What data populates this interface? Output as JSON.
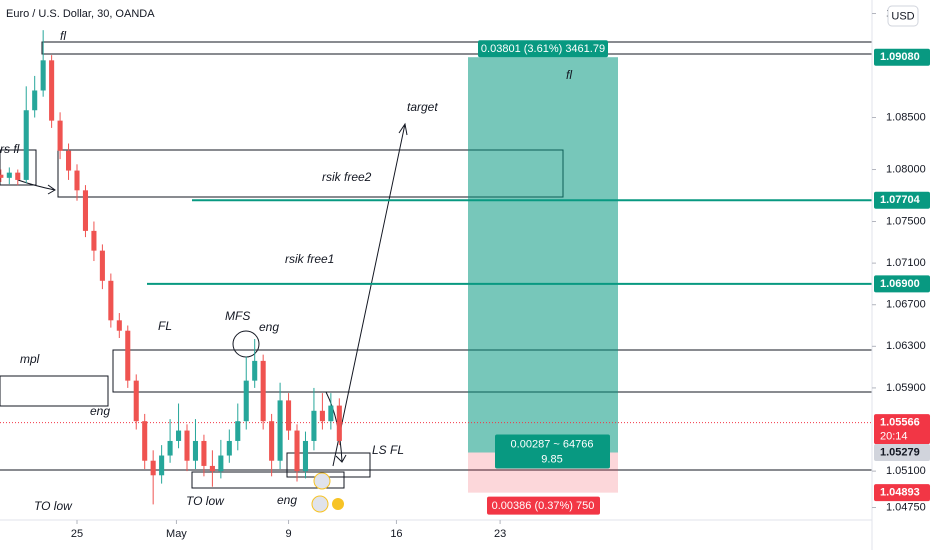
{
  "chart_data": {
    "type": "candlestick",
    "title": "Euro / U.S. Dollar, 30, OANDA",
    "currency": "USD",
    "up_color": "#26a69a",
    "down_color": "#ef5350",
    "xlim": [
      -3.64,
      37.58
    ],
    "ylim": [
      1.0463,
      1.0963
    ],
    "xticks": [
      {
        "value": 0,
        "label": "25"
      },
      {
        "value": 4.7,
        "label": "May"
      },
      {
        "value": 10,
        "label": "9"
      },
      {
        "value": 15.1,
        "label": "16"
      },
      {
        "value": 20,
        "label": "23"
      }
    ],
    "yticks": [
      {
        "value": 1.095,
        "label": "1."
      },
      {
        "value": 1.085,
        "label": "1.08500"
      },
      {
        "value": 1.08,
        "label": "1.08000"
      },
      {
        "value": 1.075,
        "label": "1.07500"
      },
      {
        "value": 1.071,
        "label": "1.07100"
      },
      {
        "value": 1.067,
        "label": "1.06700"
      },
      {
        "value": 1.063,
        "label": "1.06300"
      },
      {
        "value": 1.059,
        "label": "1.05900"
      },
      {
        "value": 1.051,
        "label": "1.05100"
      },
      {
        "value": 1.0475,
        "label": "1.04750"
      }
    ],
    "candles": [
      [
        -3.6,
        1.0795,
        1.08,
        1.0788,
        1.0792
      ],
      [
        -3.2,
        1.0792,
        1.0802,
        1.0786,
        1.0797
      ],
      [
        -2.8,
        1.0797,
        1.08,
        1.0785,
        1.079
      ],
      [
        -2.4,
        1.079,
        1.088,
        1.0787,
        1.0857
      ],
      [
        -2.0,
        1.0857,
        1.089,
        1.085,
        1.0876
      ],
      [
        -1.6,
        1.0876,
        1.0934,
        1.087,
        1.0905
      ],
      [
        -1.2,
        1.0905,
        1.091,
        1.084,
        1.0847
      ],
      [
        -0.8,
        1.0847,
        1.0855,
        1.081,
        1.0818
      ],
      [
        -0.4,
        1.0818,
        1.0825,
        1.079,
        1.0799
      ],
      [
        0.0,
        1.0799,
        1.0805,
        1.077,
        1.078
      ],
      [
        0.4,
        1.078,
        1.0785,
        1.0735,
        1.0741
      ],
      [
        0.8,
        1.0741,
        1.075,
        1.0712,
        1.0722
      ],
      [
        1.2,
        1.0722,
        1.0728,
        1.0685,
        1.0693
      ],
      [
        1.6,
        1.0693,
        1.07,
        1.0648,
        1.0655
      ],
      [
        2.0,
        1.0655,
        1.0662,
        1.0638,
        1.0645
      ],
      [
        2.4,
        1.0645,
        1.065,
        1.059,
        1.0597
      ],
      [
        2.8,
        1.0597,
        1.0603,
        1.055,
        1.0558
      ],
      [
        3.2,
        1.0558,
        1.0565,
        1.0512,
        1.052
      ],
      [
        3.6,
        1.052,
        1.053,
        1.0478,
        1.0506
      ],
      [
        4.0,
        1.0506,
        1.0535,
        1.0498,
        1.0525
      ],
      [
        4.4,
        1.0525,
        1.056,
        1.0518,
        1.0539
      ],
      [
        4.8,
        1.0539,
        1.0575,
        1.0532,
        1.0549
      ],
      [
        5.2,
        1.0549,
        1.0555,
        1.051,
        1.052
      ],
      [
        5.6,
        1.052,
        1.056,
        1.0512,
        1.0539
      ],
      [
        6.0,
        1.0539,
        1.0545,
        1.0505,
        1.0515
      ],
      [
        6.4,
        1.0515,
        1.053,
        1.0495,
        1.051
      ],
      [
        6.8,
        1.051,
        1.054,
        1.0503,
        1.0525
      ],
      [
        7.2,
        1.0525,
        1.055,
        1.0518,
        1.0539
      ],
      [
        7.6,
        1.0539,
        1.0575,
        1.053,
        1.0558
      ],
      [
        8.0,
        1.0558,
        1.062,
        1.055,
        1.0597
      ],
      [
        8.4,
        1.0597,
        1.0637,
        1.059,
        1.0616
      ],
      [
        8.8,
        1.0616,
        1.0622,
        1.055,
        1.0558
      ],
      [
        9.2,
        1.0558,
        1.0565,
        1.0505,
        1.052
      ],
      [
        9.6,
        1.052,
        1.0595,
        1.0512,
        1.0578
      ],
      [
        10.0,
        1.0578,
        1.0585,
        1.054,
        1.0549
      ],
      [
        10.4,
        1.0549,
        1.0555,
        1.05,
        1.051
      ],
      [
        10.8,
        1.051,
        1.0548,
        1.0503,
        1.0539
      ],
      [
        11.2,
        1.0539,
        1.059,
        1.053,
        1.0568
      ],
      [
        11.6,
        1.0568,
        1.0585,
        1.055,
        1.0558
      ],
      [
        12.0,
        1.0558,
        1.0585,
        1.055,
        1.0573
      ],
      [
        12.4,
        1.0573,
        1.058,
        1.0535,
        1.0539
      ]
    ],
    "price_labels": [
      {
        "value": 1.0908,
        "label": "1.09080",
        "color": "#089981"
      },
      {
        "value": 1.07704,
        "label": "1.07704",
        "color": "#089981"
      },
      {
        "value": 1.069,
        "label": "1.06900",
        "color": "#089981"
      },
      {
        "value": 1.05566,
        "label": "1.05566",
        "color": "#f23645",
        "countdown": "20:14"
      },
      {
        "value": 1.05279,
        "label": "1.05279",
        "color": "#d1d4dc"
      },
      {
        "value": 1.04893,
        "label": "1.04893",
        "color": "#f23645"
      }
    ],
    "position": {
      "target_label": "0.03801 (3.61%) 3461.79",
      "center_label": "0.00287 ~ 64766",
      "center_sublabel": "9.85",
      "stop_label": "0.00386 (0.37%) 750"
    },
    "annotations": [
      "fl",
      "rs fl",
      "rsik free2",
      "rsik free1",
      "target",
      "FL",
      "MFS",
      "eng",
      "eng",
      "eng",
      "mpl",
      "TO low",
      "TO low",
      "LS FL",
      "fl"
    ]
  }
}
